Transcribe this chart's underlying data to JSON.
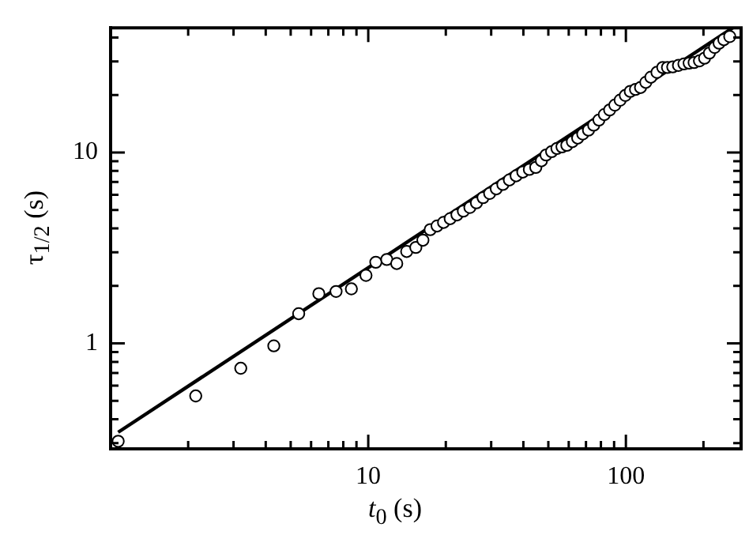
{
  "chart_data": {
    "type": "scatter",
    "xlabel": "t$_{0}$ (s)",
    "ylabel": "τ$_{1/2}$ (s)",
    "log": "xy",
    "grid": false,
    "legend": false,
    "xlim": [
      1,
      280
    ],
    "ylim": [
      0.28,
      45
    ],
    "xticks": [
      {
        "value": 2,
        "label": null
      },
      {
        "value": 3,
        "label": null
      },
      {
        "value": 4,
        "label": null
      },
      {
        "value": 5,
        "label": null
      },
      {
        "value": 6,
        "label": null
      },
      {
        "value": 7,
        "label": null
      },
      {
        "value": 8,
        "label": null
      },
      {
        "value": 9,
        "label": null
      },
      10,
      {
        "value": 20,
        "label": null
      },
      {
        "value": 30,
        "label": null
      },
      {
        "value": 40,
        "label": null
      },
      {
        "value": 50,
        "label": null
      },
      {
        "value": 60,
        "label": null
      },
      {
        "value": 70,
        "label": null
      },
      {
        "value": 80,
        "label": null
      },
      {
        "value": 90,
        "label": null
      },
      100,
      {
        "value": 200,
        "label": null
      }
    ],
    "yticks": [
      {
        "value": 0.3,
        "label": null
      },
      {
        "value": 0.4,
        "label": null
      },
      {
        "value": 0.5,
        "label": null
      },
      {
        "value": 0.6,
        "label": null
      },
      {
        "value": 0.7,
        "label": null
      },
      {
        "value": 0.8,
        "label": null
      },
      {
        "value": 0.9,
        "label": null
      },
      1,
      {
        "value": 2,
        "label": null
      },
      {
        "value": 3,
        "label": null
      },
      {
        "value": 4,
        "label": null
      },
      {
        "value": 5,
        "label": null
      },
      {
        "value": 6,
        "label": null
      },
      {
        "value": 7,
        "label": null
      },
      {
        "value": 8,
        "label": null
      },
      {
        "value": 9,
        "label": null
      },
      10,
      {
        "value": 20,
        "label": null
      },
      {
        "value": 30,
        "label": null
      },
      {
        "value": 40,
        "label": null
      }
    ],
    "series": [
      {
        "type": "scatter",
        "color": "#000000",
        "marker": "circle",
        "x": [
          1.07,
          2.14,
          3.2,
          4.3,
          5.37,
          6.43,
          7.5,
          8.6,
          9.8,
          10.7,
          11.8,
          12.9,
          14.1,
          15.3,
          16.3,
          17.4,
          18.5,
          19.6,
          20.8,
          22.1,
          23.4,
          24.8,
          26.3,
          27.9,
          29.6,
          31.4,
          33.3,
          35.3,
          37.5,
          39.8,
          42.2,
          44.7,
          47,
          49,
          51.5,
          54,
          56.5,
          59,
          62,
          65,
          68,
          71.6,
          75,
          78.6,
          82.5,
          86.5,
          90.6,
          95,
          99.5,
          104,
          109,
          114,
          119.5,
          125,
          132,
          139,
          145,
          152,
          160,
          168,
          176,
          184,
          193,
          202,
          211,
          221,
          230,
          240,
          253
        ],
        "values": [
          0.307,
          0.53,
          0.74,
          0.97,
          1.43,
          1.82,
          1.87,
          1.93,
          2.27,
          2.66,
          2.75,
          2.62,
          3.03,
          3.18,
          3.47,
          3.94,
          4.12,
          4.3,
          4.5,
          4.71,
          4.93,
          5.15,
          5.45,
          5.8,
          6.1,
          6.45,
          6.8,
          7.18,
          7.55,
          7.9,
          8.15,
          8.35,
          9.05,
          9.7,
          10.1,
          10.5,
          10.7,
          10.9,
          11.4,
          11.9,
          12.5,
          13.1,
          13.9,
          14.8,
          15.8,
          16.7,
          17.7,
          18.8,
          19.9,
          20.9,
          21.4,
          21.9,
          23.3,
          24.8,
          26.3,
          27.9,
          27.9,
          28.1,
          28.6,
          29.1,
          29.4,
          29.6,
          30.2,
          31.2,
          33.2,
          35.5,
          37.4,
          39,
          40.5
        ]
      },
      {
        "type": "line",
        "color": "#000000",
        "marker": "none",
        "line_style": "solid",
        "x": [
          1.07,
          260
        ],
        "values": [
          0.342,
          45
        ]
      }
    ]
  }
}
